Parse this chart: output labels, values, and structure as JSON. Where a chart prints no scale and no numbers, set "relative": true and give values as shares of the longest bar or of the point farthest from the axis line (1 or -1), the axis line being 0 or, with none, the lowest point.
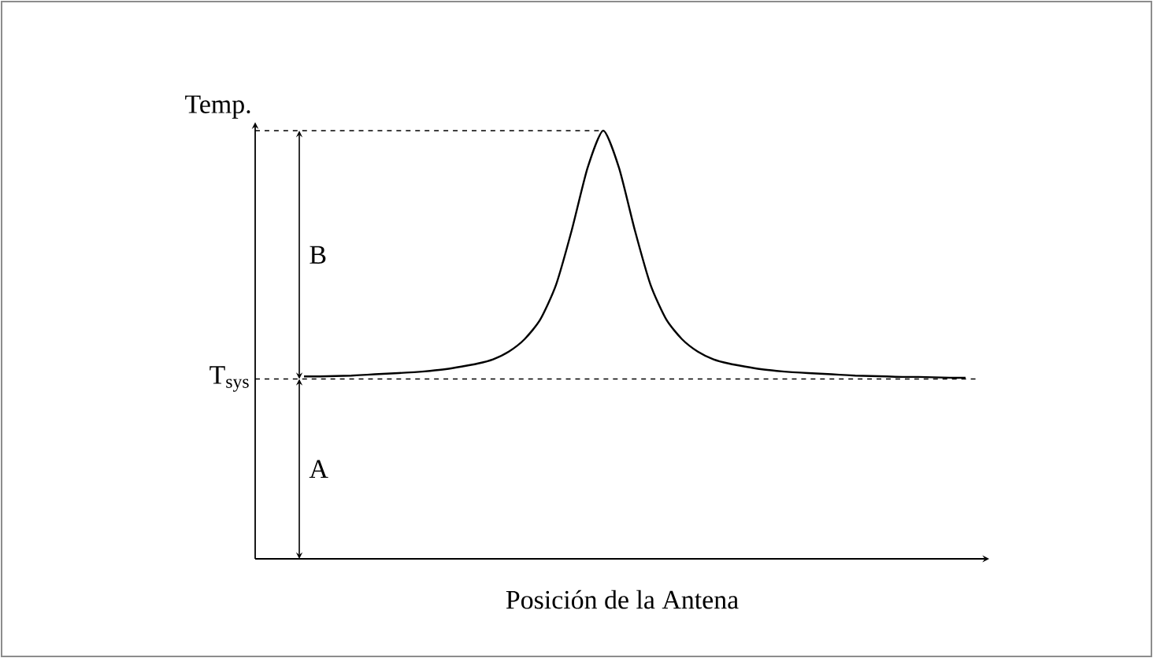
{
  "chart_data": {
    "type": "line",
    "relative": true,
    "xlabel": "Posición de la Antena",
    "ylabel": "Temp.",
    "categories": [
      null,
      null,
      null,
      null,
      null,
      null,
      null,
      null,
      null,
      null,
      null,
      null,
      null,
      null,
      null,
      null,
      null,
      null,
      null,
      null,
      null,
      null,
      null,
      null,
      null,
      null,
      null,
      null,
      null,
      null,
      null,
      null,
      null,
      null,
      null,
      null,
      null,
      null,
      null,
      null,
      null,
      null,
      null
    ],
    "values": [
      0.426,
      0.426,
      0.427,
      0.428,
      0.43,
      0.432,
      0.434,
      0.436,
      0.439,
      0.443,
      0.449,
      0.456,
      0.466,
      0.484,
      0.513,
      0.559,
      0.64,
      0.768,
      0.913,
      1.0,
      0.913,
      0.768,
      0.64,
      0.559,
      0.513,
      0.484,
      0.466,
      0.456,
      0.449,
      0.443,
      0.439,
      0.436,
      0.434,
      0.432,
      0.43,
      0.428,
      0.427,
      0.426,
      0.425,
      0.425,
      0.424,
      0.423,
      0.423
    ],
    "color": "#000000",
    "ref_lines": [
      {
        "axis": "y",
        "value": 0.42,
        "label": "T$_{sys}$",
        "line_style": "dashed"
      },
      {
        "axis": "y",
        "value": 1.0,
        "line_style": "dashed"
      }
    ],
    "annotations": [
      "B",
      "A"
    ]
  }
}
